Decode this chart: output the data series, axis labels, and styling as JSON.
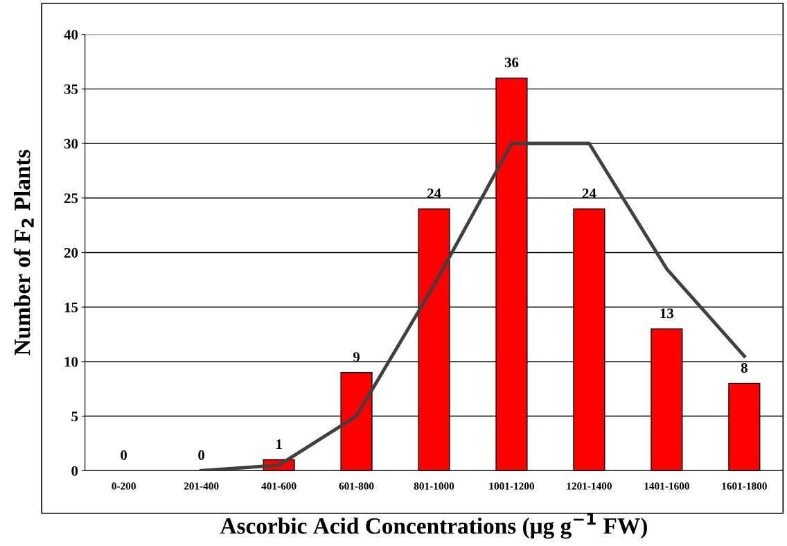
{
  "chart_data": {
    "type": "bar",
    "xlabel": "Ascorbic Acid Concentrations (μg g$^{−1}$ FW)",
    "ylabel": "Number of F$_{2}$ Plants",
    "categories": [
      "0-200",
      "201-400",
      "401-600",
      "601-800",
      "801-1000",
      "1001-1200",
      "1201-1400",
      "1401-1600",
      "1601-1800"
    ],
    "series": [
      {
        "color": "#ff0000",
        "values": [
          0,
          0,
          1,
          9,
          24,
          36,
          24,
          13,
          8
        ],
        "data_labels": true
      },
      {
        "type": "line",
        "color": "#404040",
        "values": [
          null,
          0,
          0.5,
          5,
          17,
          30,
          30,
          18.5,
          10.5
        ],
        "line_style": "solid",
        "marker": "none"
      }
    ],
    "ylim": [
      0,
      40
    ],
    "yticks": [
      0,
      5,
      10,
      15,
      20,
      25,
      30,
      35,
      40
    ],
    "grid": "y",
    "legend": false
  }
}
